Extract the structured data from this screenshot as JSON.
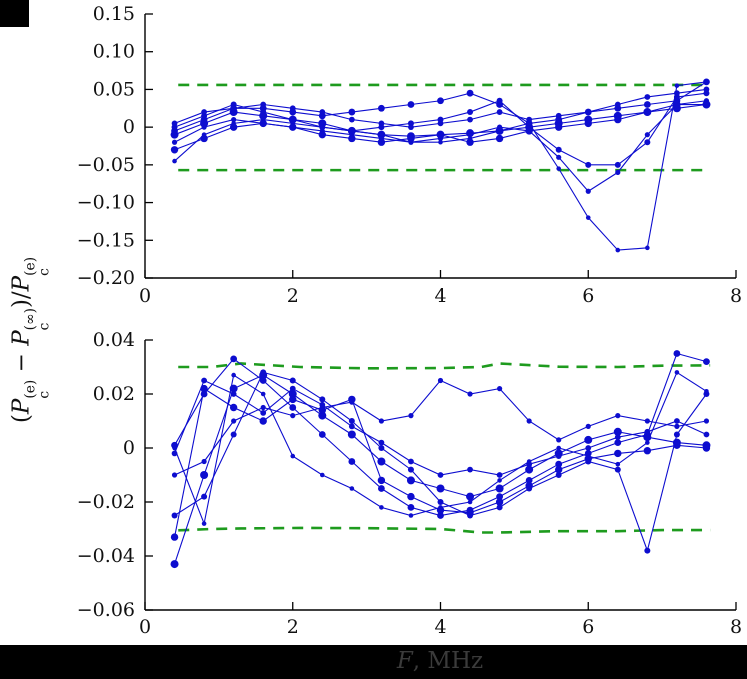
{
  "figure": {
    "ylabel_tokens": [
      {
        "t": "("
      },
      {
        "t": "P",
        "i": true
      },
      {
        "sup": "(e)",
        "sub": "c"
      },
      {
        "t": " − "
      },
      {
        "t": "P",
        "i": true
      },
      {
        "sup": "(∞)",
        "sub": "c"
      },
      {
        "t": ")/"
      },
      {
        "t": "P",
        "i": true
      },
      {
        "sup": "(e)",
        "sub": "c"
      }
    ],
    "xlabel_tokens": [
      {
        "t": "F",
        "i": true
      },
      {
        "t": ", MHz"
      }
    ],
    "colors": {
      "series_line": "#0d0dcf",
      "marker": "#0d0dcf",
      "bound_dashed": "#1e9b1e",
      "axis": "#000000",
      "xlabel_text": "#3b3b3b"
    }
  },
  "chart_data": [
    {
      "type": "line",
      "panel": "top",
      "xlim": [
        0,
        8
      ],
      "ylim": [
        -0.2,
        0.15
      ],
      "xticks": {
        "values": [
          0,
          2,
          4,
          6,
          8
        ],
        "labels": [
          "0",
          "2",
          "4",
          "6",
          "8"
        ]
      },
      "yticks": {
        "values": [
          0.15,
          0.1,
          0.05,
          0,
          -0.05,
          -0.1,
          -0.15,
          -0.2
        ],
        "labels": [
          "0.15",
          "0.10",
          "0.05",
          "0",
          "−0.05",
          "−0.10",
          "−0.15",
          "−0.20"
        ]
      },
      "x": [
        0.4,
        0.8,
        1.2,
        1.6,
        2.0,
        2.4,
        2.8,
        3.2,
        3.6,
        4.0,
        4.4,
        4.8,
        5.2,
        5.6,
        6.0,
        6.4,
        6.8,
        7.2,
        7.6
      ],
      "series": [
        {
          "name": "series-1",
          "marker_radius": 4.0,
          "values": [
            -0.01,
            0.005,
            0.02,
            0.015,
            0.01,
            0.005,
            -0.005,
            -0.01,
            -0.012,
            -0.01,
            -0.008,
            -0.005,
            0.0,
            0.005,
            0.01,
            0.015,
            0.02,
            0.025,
            0.03
          ]
        },
        {
          "name": "series-2",
          "marker_radius": 3.4,
          "values": [
            -0.005,
            0.01,
            0.025,
            0.025,
            0.02,
            0.015,
            0.02,
            0.025,
            0.03,
            0.035,
            0.045,
            0.03,
            0.005,
            0.01,
            0.02,
            0.025,
            0.03,
            0.035,
            0.06
          ]
        },
        {
          "name": "series-3",
          "marker_radius": 3.0,
          "values": [
            0.0,
            0.015,
            0.03,
            0.02,
            0.01,
            0.0,
            -0.005,
            0.0,
            0.005,
            0.01,
            0.02,
            0.035,
            0.0,
            -0.03,
            -0.05,
            -0.05,
            -0.02,
            0.04,
            0.045
          ]
        },
        {
          "name": "series-4",
          "marker_radius": 2.6,
          "values": [
            -0.02,
            0.0,
            0.01,
            0.005,
            0.0,
            -0.005,
            -0.01,
            -0.015,
            -0.02,
            -0.015,
            -0.01,
            0.0,
            -0.005,
            -0.04,
            -0.085,
            -0.06,
            -0.01,
            0.03,
            0.035
          ]
        },
        {
          "name": "series-5",
          "marker_radius": 2.3,
          "values": [
            -0.045,
            -0.01,
            0.005,
            0.01,
            0.005,
            0.0,
            -0.005,
            -0.01,
            -0.02,
            -0.02,
            -0.015,
            -0.005,
            0.005,
            -0.055,
            -0.12,
            -0.163,
            -0.16,
            0.055,
            0.06
          ]
        },
        {
          "name": "series-6",
          "marker_radius": 3.7,
          "values": [
            -0.03,
            -0.015,
            0.0,
            0.005,
            0.0,
            -0.01,
            -0.015,
            -0.02,
            -0.015,
            -0.01,
            -0.02,
            -0.015,
            -0.005,
            0.0,
            0.005,
            0.01,
            0.02,
            0.03,
            0.03
          ]
        },
        {
          "name": "series-7",
          "marker_radius": 2.9,
          "values": [
            0.005,
            0.02,
            0.025,
            0.03,
            0.025,
            0.02,
            0.01,
            0.005,
            0.0,
            0.005,
            0.01,
            0.02,
            0.01,
            0.015,
            0.02,
            0.03,
            0.04,
            0.045,
            0.05
          ]
        }
      ],
      "bounds": {
        "upper": {
          "x": [
            0.45,
            7.65
          ],
          "y": [
            0.056,
            0.056
          ]
        },
        "lower": {
          "x": [
            0.45,
            7.65
          ],
          "y": [
            -0.057,
            -0.057
          ]
        }
      }
    },
    {
      "type": "line",
      "panel": "bottom",
      "xlim": [
        0,
        8
      ],
      "ylim": [
        -0.06,
        0.04
      ],
      "xticks": {
        "values": [
          0,
          2,
          4,
          6,
          8
        ],
        "labels": [
          "0",
          "2",
          "4",
          "6",
          "8"
        ]
      },
      "yticks": {
        "values": [
          0.04,
          0.02,
          0,
          -0.02,
          -0.04,
          -0.06
        ],
        "labels": [
          "0.04",
          "0.02",
          "0",
          "−0.02",
          "−0.04",
          "−0.06"
        ]
      },
      "x": [
        0.4,
        0.8,
        1.2,
        1.6,
        2.0,
        2.4,
        2.8,
        3.2,
        3.6,
        4.0,
        4.4,
        4.8,
        5.2,
        5.6,
        6.0,
        6.4,
        6.8,
        7.2,
        7.6
      ],
      "series": [
        {
          "name": "series-1",
          "marker_radius": 4.0,
          "values": [
            -0.043,
            -0.01,
            0.022,
            0.027,
            0.02,
            0.012,
            0.005,
            -0.005,
            -0.012,
            -0.015,
            -0.018,
            -0.015,
            -0.008,
            -0.002,
            0.003,
            0.006,
            0.004,
            0.002,
            0.001
          ]
        },
        {
          "name": "series-2",
          "marker_radius": 3.4,
          "values": [
            0.001,
            0.02,
            0.033,
            0.025,
            0.015,
            0.005,
            -0.005,
            -0.015,
            -0.022,
            -0.025,
            -0.023,
            -0.018,
            -0.012,
            -0.006,
            -0.002,
            0.002,
            0.005,
            0.035,
            0.032
          ]
        },
        {
          "name": "series-3",
          "marker_radius": 3.0,
          "values": [
            -0.025,
            -0.018,
            0.005,
            0.028,
            0.025,
            0.018,
            0.01,
            0.0,
            -0.008,
            -0.02,
            -0.025,
            -0.022,
            -0.015,
            -0.01,
            -0.005,
            -0.008,
            -0.038,
            0.005,
            0.02
          ]
        },
        {
          "name": "series-4",
          "marker_radius": 2.6,
          "values": [
            -0.01,
            -0.005,
            0.01,
            0.015,
            0.012,
            0.015,
            0.017,
            0.01,
            0.012,
            0.025,
            0.02,
            0.022,
            0.01,
            0.003,
            0.008,
            0.012,
            0.01,
            0.008,
            0.01
          ]
        },
        {
          "name": "series-5",
          "marker_radius": 2.3,
          "values": [
            0.0,
            -0.028,
            0.027,
            0.02,
            -0.003,
            -0.01,
            -0.015,
            -0.022,
            -0.025,
            -0.022,
            -0.02,
            -0.012,
            -0.005,
            0.0,
            -0.003,
            -0.006,
            0.002,
            0.028,
            0.021
          ]
        },
        {
          "name": "series-6",
          "marker_radius": 3.7,
          "values": [
            -0.033,
            0.022,
            0.015,
            0.01,
            0.018,
            0.014,
            0.018,
            -0.012,
            -0.018,
            -0.023,
            -0.024,
            -0.02,
            -0.014,
            -0.008,
            -0.004,
            -0.002,
            -0.001,
            0.001,
            0.0
          ]
        },
        {
          "name": "series-7",
          "marker_radius": 2.9,
          "values": [
            -0.002,
            0.025,
            0.02,
            0.013,
            0.022,
            0.016,
            0.008,
            0.002,
            -0.005,
            -0.01,
            -0.008,
            -0.01,
            -0.006,
            -0.003,
            0.0,
            0.004,
            0.006,
            0.01,
            0.005
          ]
        }
      ],
      "bounds": {
        "upper": {
          "x": [
            0.45,
            0.9,
            1.3,
            2.1,
            3.0,
            4.0,
            4.55,
            4.8,
            5.6,
            6.4,
            7.0,
            7.65
          ],
          "y": [
            0.03,
            0.03,
            0.0313,
            0.03,
            0.0295,
            0.0296,
            0.03,
            0.0313,
            0.0301,
            0.03,
            0.0305,
            0.0306
          ]
        },
        "lower": {
          "x": [
            0.45,
            0.9,
            1.3,
            2.1,
            3.0,
            4.0,
            4.55,
            4.8,
            5.6,
            6.4,
            7.0,
            7.65
          ],
          "y": [
            -0.0305,
            -0.03,
            -0.0298,
            -0.0296,
            -0.0297,
            -0.03,
            -0.0313,
            -0.0313,
            -0.0308,
            -0.0308,
            -0.0304,
            -0.0304
          ]
        }
      }
    }
  ]
}
